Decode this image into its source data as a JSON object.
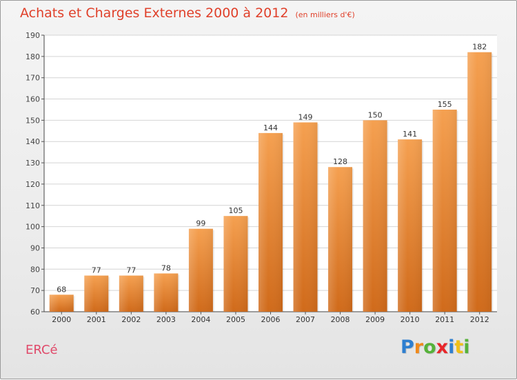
{
  "chart_data": {
    "type": "bar",
    "title": "Achats et Charges Externes 2000 à 2012",
    "subtitle": "(en milliers d'€)",
    "categories": [
      "2000",
      "2001",
      "2002",
      "2003",
      "2004",
      "2005",
      "2006",
      "2007",
      "2008",
      "2009",
      "2010",
      "2011",
      "2012"
    ],
    "values": [
      68,
      77,
      77,
      78,
      99,
      105,
      144,
      149,
      128,
      150,
      141,
      155,
      182
    ],
    "ylim": [
      60,
      190
    ],
    "yticks": [
      60,
      70,
      80,
      90,
      100,
      110,
      120,
      130,
      140,
      150,
      160,
      170,
      180,
      190
    ],
    "grid": "horizontal",
    "bar_color": "#f0903a"
  },
  "footer": {
    "commune": "ERCé",
    "brand": [
      "P",
      "r",
      "o",
      "x",
      "i",
      "t",
      "i"
    ],
    "brand_colors": [
      "#2e7fd0",
      "#f08a1c",
      "#56b23a",
      "#e8262a",
      "#2e7fd0",
      "#f0c018",
      "#56b23a"
    ]
  }
}
